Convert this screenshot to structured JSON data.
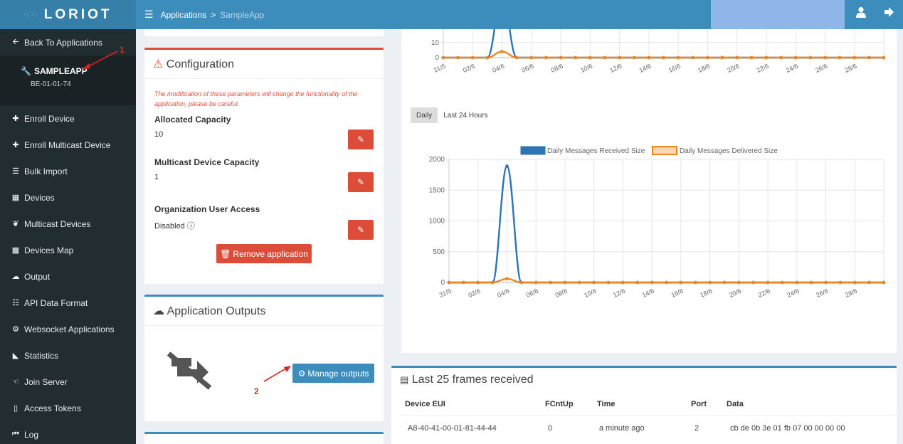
{
  "header": {
    "logo_text": "LORIOT",
    "breadcrumb": [
      "Applications",
      ">",
      "SampleApp"
    ]
  },
  "sidebar": {
    "back_label": "Back To Applications",
    "app_name": "SAMPLEAPP",
    "app_eui": "BE-01-01-74",
    "items": [
      {
        "label": "Enroll Device",
        "icon": "plus-icon"
      },
      {
        "label": "Enroll Multicast Device",
        "icon": "plus-icon"
      },
      {
        "label": "Bulk Import",
        "icon": "list-icon"
      },
      {
        "label": "Devices",
        "icon": "cubes-icon"
      },
      {
        "label": "Multicast Devices",
        "icon": "rss-icon"
      },
      {
        "label": "Devices Map",
        "icon": "map-icon"
      },
      {
        "label": "Output",
        "icon": "cloud-upload-icon"
      },
      {
        "label": "API Data Format",
        "icon": "sitemap-icon"
      },
      {
        "label": "Websocket Applications",
        "icon": "gear-icon"
      },
      {
        "label": "Statistics",
        "icon": "area-chart-icon"
      },
      {
        "label": "Join Server",
        "icon": "handshake-icon"
      },
      {
        "label": "Access Tokens",
        "icon": "lock-icon"
      },
      {
        "label": "Log",
        "icon": "fast-backward-icon"
      }
    ]
  },
  "configuration": {
    "title": "Configuration",
    "note": "The modification of these parameters will change the functionality of the application, please be careful.",
    "allocated_capacity_label": "Allocated Capacity",
    "allocated_capacity_value": "10",
    "multicast_capacity_label": "Multicast Device Capacity",
    "multicast_capacity_value": "1",
    "org_access_label": "Organization User Access",
    "org_access_value": "Disabled",
    "remove_label": "Remove application"
  },
  "outputs": {
    "title": "Application Outputs",
    "manage_label": "Manage outputs"
  },
  "annotations": {
    "one": "1",
    "two": "2"
  },
  "stats": {
    "tabs": [
      "Daily",
      "Last 24 Hours"
    ],
    "active_tab": "Daily"
  },
  "chart_data": [
    {
      "type": "line",
      "title": "",
      "x": [
        "31/5",
        "01/6",
        "02/6",
        "03/6",
        "04/6",
        "05/6",
        "06/6",
        "07/6",
        "08/6",
        "09/6",
        "10/6",
        "11/6",
        "12/6",
        "13/6",
        "14/6",
        "15/6",
        "16/6",
        "17/6",
        "18/6",
        "19/6",
        "20/6",
        "21/6",
        "22/6",
        "23/6",
        "24/6",
        "25/6",
        "26/6",
        "27/6",
        "28/6",
        "29/6",
        "30/6"
      ],
      "tick_labels": [
        "31/5",
        "02/6",
        "04/6",
        "06/6",
        "08/6",
        "10/6",
        "12/6",
        "14/6",
        "16/6",
        "18/6",
        "20/6",
        "22/6",
        "24/6",
        "26/6",
        "28/6"
      ],
      "ytick_labels": [
        "0",
        "10"
      ],
      "ylim": [
        0,
        40
      ],
      "series": [
        {
          "values": [
            0,
            0,
            0,
            0,
            40,
            0,
            0,
            0,
            0,
            0,
            0,
            0,
            0,
            0,
            0,
            0,
            0,
            0,
            0,
            0,
            0,
            0,
            0,
            0,
            0,
            0,
            0,
            0,
            0,
            0,
            0
          ],
          "color": "#2e75b6"
        },
        {
          "values": [
            0,
            0,
            0,
            0,
            4,
            0,
            0,
            0,
            0,
            0,
            0,
            0,
            0,
            0,
            0,
            0,
            0,
            0,
            0,
            0,
            0,
            0,
            0,
            0,
            0,
            0,
            0,
            0,
            0,
            0,
            0
          ],
          "color": "#f0851c"
        }
      ]
    },
    {
      "type": "line",
      "title": "",
      "x": [
        "31/5",
        "01/6",
        "02/6",
        "03/6",
        "04/6",
        "05/6",
        "06/6",
        "07/6",
        "08/6",
        "09/6",
        "10/6",
        "11/6",
        "12/6",
        "13/6",
        "14/6",
        "15/6",
        "16/6",
        "17/6",
        "18/6",
        "19/6",
        "20/6",
        "21/6",
        "22/6",
        "23/6",
        "24/6",
        "25/6",
        "26/6",
        "27/6",
        "28/6",
        "29/6",
        "30/6"
      ],
      "tick_labels": [
        "31/5",
        "02/6",
        "04/6",
        "06/6",
        "08/6",
        "10/6",
        "12/6",
        "14/6",
        "16/6",
        "18/6",
        "20/6",
        "22/6",
        "24/6",
        "26/6",
        "28/6"
      ],
      "ytick_labels": [
        "0",
        "500",
        "1000",
        "1500",
        "2000"
      ],
      "ylim": [
        0,
        2000
      ],
      "legend_placement": "top",
      "series": [
        {
          "name": "Daily Messages Received Size",
          "values": [
            0,
            0,
            0,
            0,
            1890,
            0,
            0,
            0,
            0,
            0,
            0,
            0,
            0,
            0,
            0,
            0,
            0,
            0,
            0,
            0,
            0,
            0,
            0,
            0,
            0,
            0,
            0,
            0,
            0,
            0,
            0
          ],
          "color": "#2e75b6"
        },
        {
          "name": "Daily Messages Delivered Size",
          "values": [
            0,
            0,
            0,
            0,
            60,
            0,
            0,
            0,
            0,
            0,
            0,
            0,
            0,
            0,
            0,
            0,
            0,
            0,
            0,
            0,
            0,
            0,
            0,
            0,
            0,
            0,
            0,
            0,
            0,
            0,
            0
          ],
          "color": "#f0851c"
        }
      ]
    }
  ],
  "frames": {
    "title": "Last 25 frames received",
    "columns": [
      "Device EUI",
      "FCntUp",
      "Time",
      "Port",
      "Data"
    ],
    "rows": [
      [
        "A8-40-41-00-01-81-44-44",
        "0",
        "a minute ago",
        "2",
        "cb de 0b 3e 01 fb 07 00 00 00 00"
      ]
    ]
  }
}
